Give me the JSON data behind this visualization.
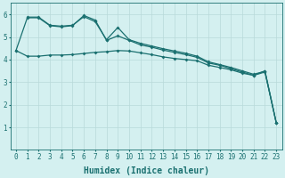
{
  "xlabel": "Humidex (Indice chaleur)",
  "bg_color": "#d4f0f0",
  "line_color": "#1a7070",
  "grid_color": "#b8dada",
  "xlim": [
    -0.5,
    23.5
  ],
  "ylim": [
    0,
    6.5
  ],
  "x_ticks": [
    0,
    1,
    2,
    3,
    4,
    5,
    6,
    7,
    8,
    9,
    10,
    11,
    12,
    13,
    14,
    15,
    16,
    17,
    18,
    19,
    20,
    21,
    22,
    23
  ],
  "y_ticks": [
    1,
    2,
    3,
    4,
    5,
    6
  ],
  "line1_x": [
    0,
    1,
    2,
    3,
    4,
    5,
    6,
    7,
    8,
    9,
    10,
    11,
    12,
    13,
    14,
    15,
    16,
    17,
    18,
    19,
    20,
    21,
    22,
    23
  ],
  "line1_y": [
    4.4,
    4.15,
    4.15,
    4.2,
    4.2,
    4.22,
    4.27,
    4.32,
    4.35,
    4.4,
    4.38,
    4.3,
    4.22,
    4.12,
    4.05,
    4.0,
    3.95,
    3.75,
    3.65,
    3.55,
    3.4,
    3.3,
    3.5,
    1.2
  ],
  "line2_x": [
    0,
    1,
    2,
    3,
    4,
    5,
    6,
    7,
    8,
    9,
    10,
    11,
    12,
    13,
    14,
    15,
    16,
    17,
    18,
    19,
    20,
    21,
    22,
    23
  ],
  "line2_y": [
    4.4,
    5.85,
    5.85,
    5.5,
    5.45,
    5.5,
    5.95,
    5.75,
    4.85,
    5.05,
    4.85,
    4.65,
    4.55,
    4.42,
    4.32,
    4.22,
    4.1,
    3.85,
    3.75,
    3.6,
    3.45,
    3.3,
    3.45,
    1.2
  ],
  "line3_x": [
    1,
    2,
    3,
    4,
    5,
    6,
    7,
    8,
    9,
    10,
    11,
    12,
    13,
    14,
    15,
    16,
    17,
    18,
    19,
    20,
    21,
    22,
    23
  ],
  "line3_y": [
    5.88,
    5.88,
    5.52,
    5.48,
    5.52,
    5.9,
    5.68,
    4.88,
    5.42,
    4.88,
    4.72,
    4.6,
    4.48,
    4.38,
    4.28,
    4.15,
    3.9,
    3.78,
    3.65,
    3.5,
    3.35,
    3.48,
    1.2
  ],
  "marker": "D",
  "markersize": 2.0,
  "linewidth": 0.9,
  "xlabel_fontsize": 7,
  "tick_fontsize": 5.5
}
